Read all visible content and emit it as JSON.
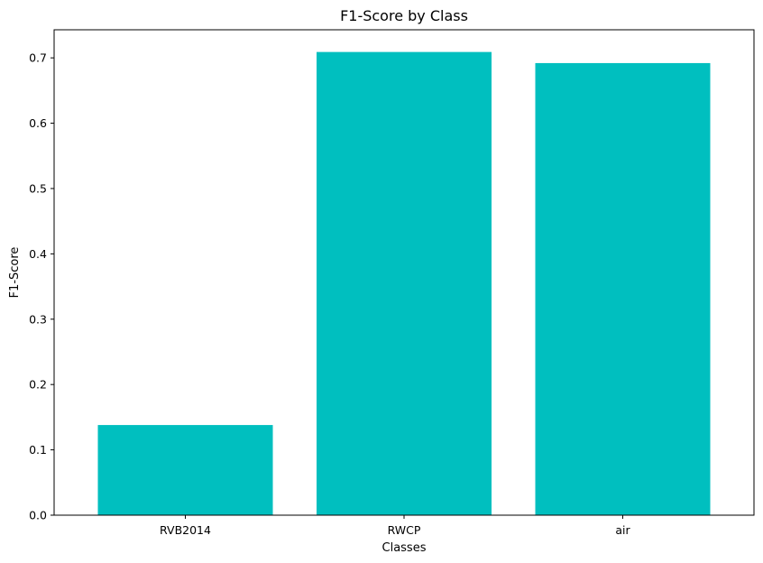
{
  "chart_data": {
    "type": "bar",
    "title": "F1-Score by Class",
    "xlabel": "Classes",
    "ylabel": "F1-Score",
    "categories": [
      "RVB2014",
      "RWCP",
      "air"
    ],
    "values": [
      0.138,
      0.709,
      0.692
    ],
    "ylim": [
      0,
      0.743
    ],
    "yticks": [
      0.0,
      0.1,
      0.2,
      0.3,
      0.4,
      0.5,
      0.6,
      0.7
    ],
    "ytick_labels": [
      "0.0",
      "0.1",
      "0.2",
      "0.3",
      "0.4",
      "0.5",
      "0.6",
      "0.7"
    ],
    "bar_color": "#00bfbf",
    "grid": false,
    "legend": "none"
  }
}
